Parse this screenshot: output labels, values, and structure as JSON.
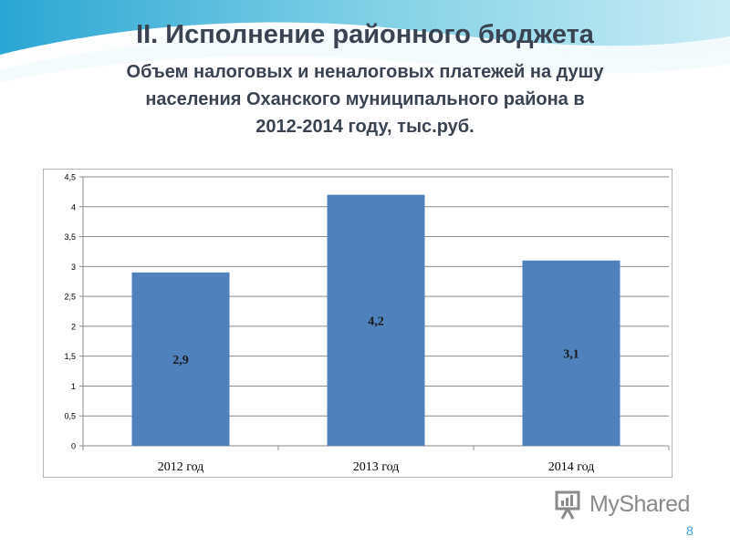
{
  "slide": {
    "title": "II. Исполнение районного бюджета",
    "subtitle_lines": [
      "Объем налоговых и неналоговых платежей на душу",
      "населения Оханского муниципального района в",
      "2012-2014 году, тыс.руб."
    ],
    "page_number": "8",
    "watermark": "MyShared",
    "colors": {
      "header_wave": "#49b6d8",
      "bar": "#4f81bd",
      "page_number": "#3aa0d8"
    }
  },
  "chart_data": {
    "type": "bar",
    "categories": [
      "2012 год",
      "2013 год",
      "2014 год"
    ],
    "values": [
      2.9,
      4.2,
      3.1
    ],
    "data_labels": [
      "2,9",
      "4,2",
      "3,1"
    ],
    "ylim": [
      0,
      4.5
    ],
    "yticks": [
      0,
      0.5,
      1,
      1.5,
      2,
      2.5,
      3,
      3.5,
      4,
      4.5
    ],
    "ytick_labels": [
      "0",
      "0,5",
      "1",
      "1,5",
      "2",
      "2,5",
      "3",
      "3,5",
      "4",
      "4,5"
    ],
    "grid": true,
    "legend": "none",
    "bar_color": "#4f81bd"
  }
}
